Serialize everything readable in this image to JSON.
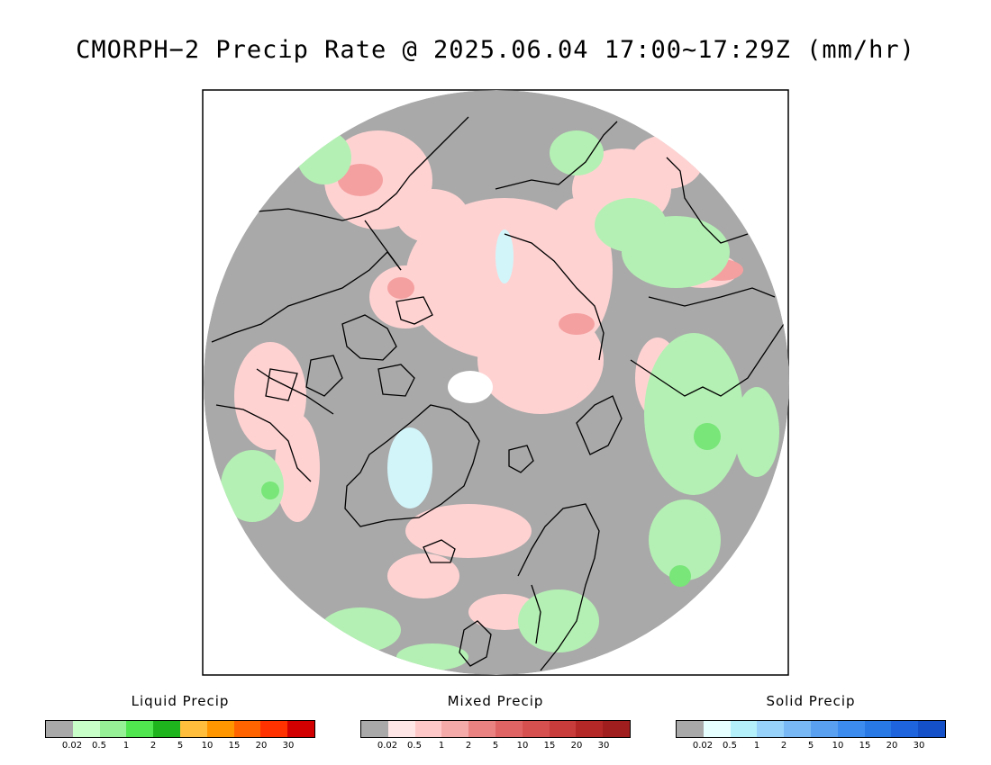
{
  "title": "CMORPH−2 Precip Rate @ 2025.06.04 17:00~17:29Z (mm/hr)",
  "colors": {
    "background_gray": "#a9a9a9",
    "no_data": "#ffffff",
    "coastline": "#000000",
    "liquid_light": "#b4f0b4",
    "liquid_mid": "#78e678",
    "mixed_light": "#ffd2d2",
    "mixed_mid": "#f5a0a0",
    "solid_light": "#d2f5fa"
  },
  "legends": [
    {
      "title": "Liquid Precip",
      "colors": [
        "#a9a9a9",
        "#c8ffc8",
        "#96f096",
        "#50e650",
        "#1eb41e",
        "#ffbe3c",
        "#ff9600",
        "#ff6400",
        "#ff3200",
        "#d20000"
      ],
      "ticks": [
        "0.02",
        "0.5",
        "1",
        "2",
        "5",
        "10",
        "15",
        "20",
        "30"
      ]
    },
    {
      "title": "Mixed Precip",
      "colors": [
        "#a9a9a9",
        "#ffe6e6",
        "#ffc8c8",
        "#f5aaaa",
        "#eb8282",
        "#e16464",
        "#d75050",
        "#c83c3c",
        "#b42828",
        "#a01e1e"
      ],
      "ticks": [
        "0.02",
        "0.5",
        "1",
        "2",
        "5",
        "10",
        "15",
        "20",
        "30"
      ]
    },
    {
      "title": "Solid Precip",
      "colors": [
        "#a9a9a9",
        "#e6ffff",
        "#b4f0fa",
        "#96d2fa",
        "#78b9f5",
        "#5aa0f0",
        "#3c8cf0",
        "#2878e6",
        "#1e64dc",
        "#1450c8"
      ],
      "ticks": [
        "0.02",
        "0.5",
        "1",
        "2",
        "5",
        "10",
        "15",
        "20",
        "30"
      ]
    }
  ]
}
